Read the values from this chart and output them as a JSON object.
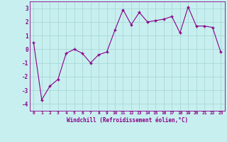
{
  "x": [
    0,
    1,
    2,
    3,
    4,
    5,
    6,
    7,
    8,
    9,
    10,
    11,
    12,
    13,
    14,
    15,
    16,
    17,
    18,
    19,
    20,
    21,
    22,
    23
  ],
  "y": [
    0.5,
    -3.7,
    -2.7,
    -2.2,
    -0.3,
    0.0,
    -0.3,
    -1.0,
    -0.4,
    -0.2,
    1.4,
    2.9,
    1.8,
    2.7,
    2.0,
    2.1,
    2.2,
    2.4,
    1.2,
    3.1,
    1.7,
    1.7,
    1.6,
    -0.2
  ],
  "xlim": [
    -0.5,
    23.5
  ],
  "ylim": [
    -4.5,
    3.5
  ],
  "yticks": [
    -4,
    -3,
    -2,
    -1,
    0,
    1,
    2,
    3
  ],
  "xtick_labels": [
    "0",
    "1",
    "2",
    "3",
    "4",
    "5",
    "6",
    "7",
    "8",
    "9",
    "10",
    "11",
    "12",
    "13",
    "14",
    "15",
    "16",
    "17",
    "18",
    "19",
    "20",
    "21",
    "22",
    "23"
  ],
  "xlabel": "Windchill (Refroidissement éolien,°C)",
  "line_color": "#880088",
  "marker": "+",
  "bg_color": "#c8efef",
  "grid_color": "#a8d8d8",
  "label_color": "#880088",
  "tick_color": "#880088"
}
